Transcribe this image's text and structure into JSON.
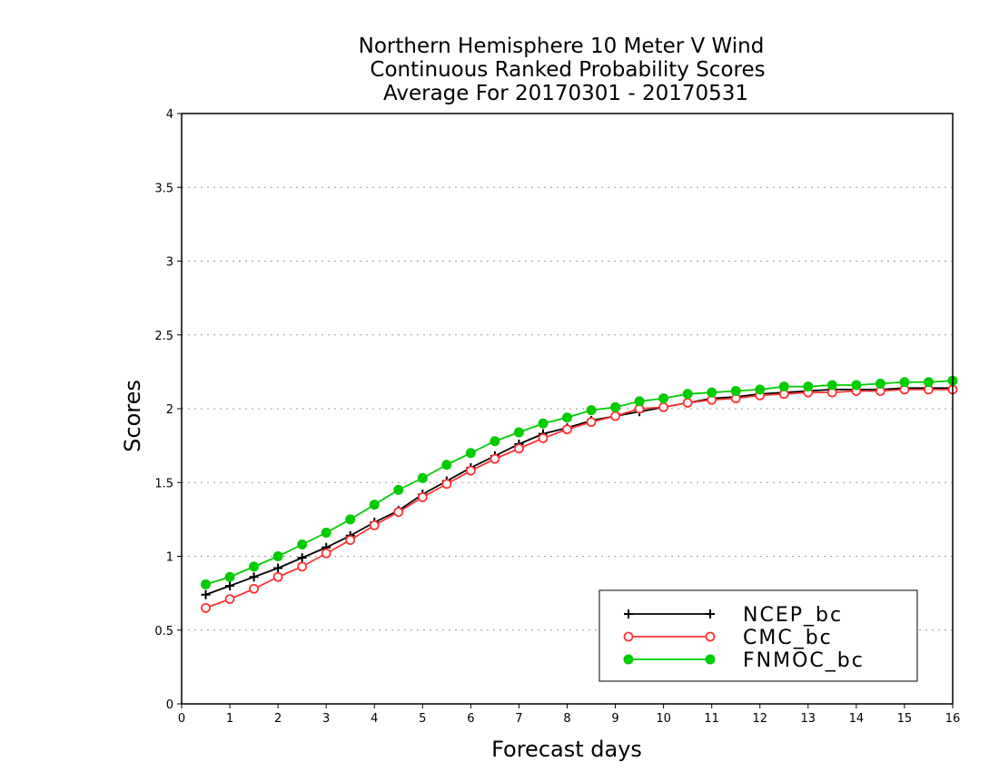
{
  "chart_data": {
    "type": "line",
    "title": [
      "Northern Hemisphere 10 Meter V Wind",
      "Continuous Ranked Probability Scores",
      "Average For 20170301 - 20170531"
    ],
    "xlabel": "Forecast days",
    "ylabel": "Scores",
    "xlim": [
      0,
      16
    ],
    "ylim": [
      0,
      4
    ],
    "xticks": [
      "0",
      "1",
      "2",
      "3",
      "4",
      "5",
      "6",
      "7",
      "8",
      "9",
      "10",
      "11",
      "12",
      "13",
      "14",
      "15",
      "16"
    ],
    "yticks": [
      "0",
      "0.5",
      "1",
      "1.5",
      "2",
      "2.5",
      "3",
      "3.5",
      "4"
    ],
    "grid": "horizontal dotted",
    "legend_position": "bottom-right",
    "x": [
      0.5,
      1,
      1.5,
      2,
      2.5,
      3,
      3.5,
      4,
      4.5,
      5,
      5.5,
      6,
      6.5,
      7,
      7.5,
      8,
      8.5,
      9,
      9.5,
      10,
      10.5,
      11,
      11.5,
      12,
      12.5,
      13,
      13.5,
      14,
      14.5,
      15,
      15.5,
      16
    ],
    "series": [
      {
        "name": "NCEP_bc",
        "color": "#000000",
        "marker": "plus",
        "values": [
          0.74,
          0.8,
          0.86,
          0.92,
          0.99,
          1.06,
          1.14,
          1.23,
          1.31,
          1.42,
          1.51,
          1.6,
          1.68,
          1.76,
          1.83,
          1.87,
          1.92,
          1.95,
          1.98,
          2.01,
          2.04,
          2.07,
          2.08,
          2.1,
          2.11,
          2.12,
          2.13,
          2.13,
          2.13,
          2.14,
          2.14,
          2.14
        ]
      },
      {
        "name": "CMC_bc",
        "color": "#ff3333",
        "marker": "open-circle",
        "values": [
          0.65,
          0.71,
          0.78,
          0.86,
          0.93,
          1.02,
          1.11,
          1.21,
          1.3,
          1.4,
          1.49,
          1.58,
          1.66,
          1.73,
          1.8,
          1.86,
          1.91,
          1.95,
          2.0,
          2.01,
          2.04,
          2.06,
          2.07,
          2.09,
          2.1,
          2.11,
          2.11,
          2.12,
          2.12,
          2.13,
          2.13,
          2.13
        ]
      },
      {
        "name": "FNMOC_bc",
        "color": "#00cc00",
        "marker": "filled-circle",
        "values": [
          0.81,
          0.86,
          0.93,
          1.0,
          1.08,
          1.16,
          1.25,
          1.35,
          1.45,
          1.53,
          1.62,
          1.7,
          1.78,
          1.84,
          1.9,
          1.94,
          1.99,
          2.01,
          2.05,
          2.07,
          2.1,
          2.11,
          2.12,
          2.13,
          2.15,
          2.15,
          2.16,
          2.16,
          2.17,
          2.18,
          2.18,
          2.19
        ]
      }
    ]
  }
}
